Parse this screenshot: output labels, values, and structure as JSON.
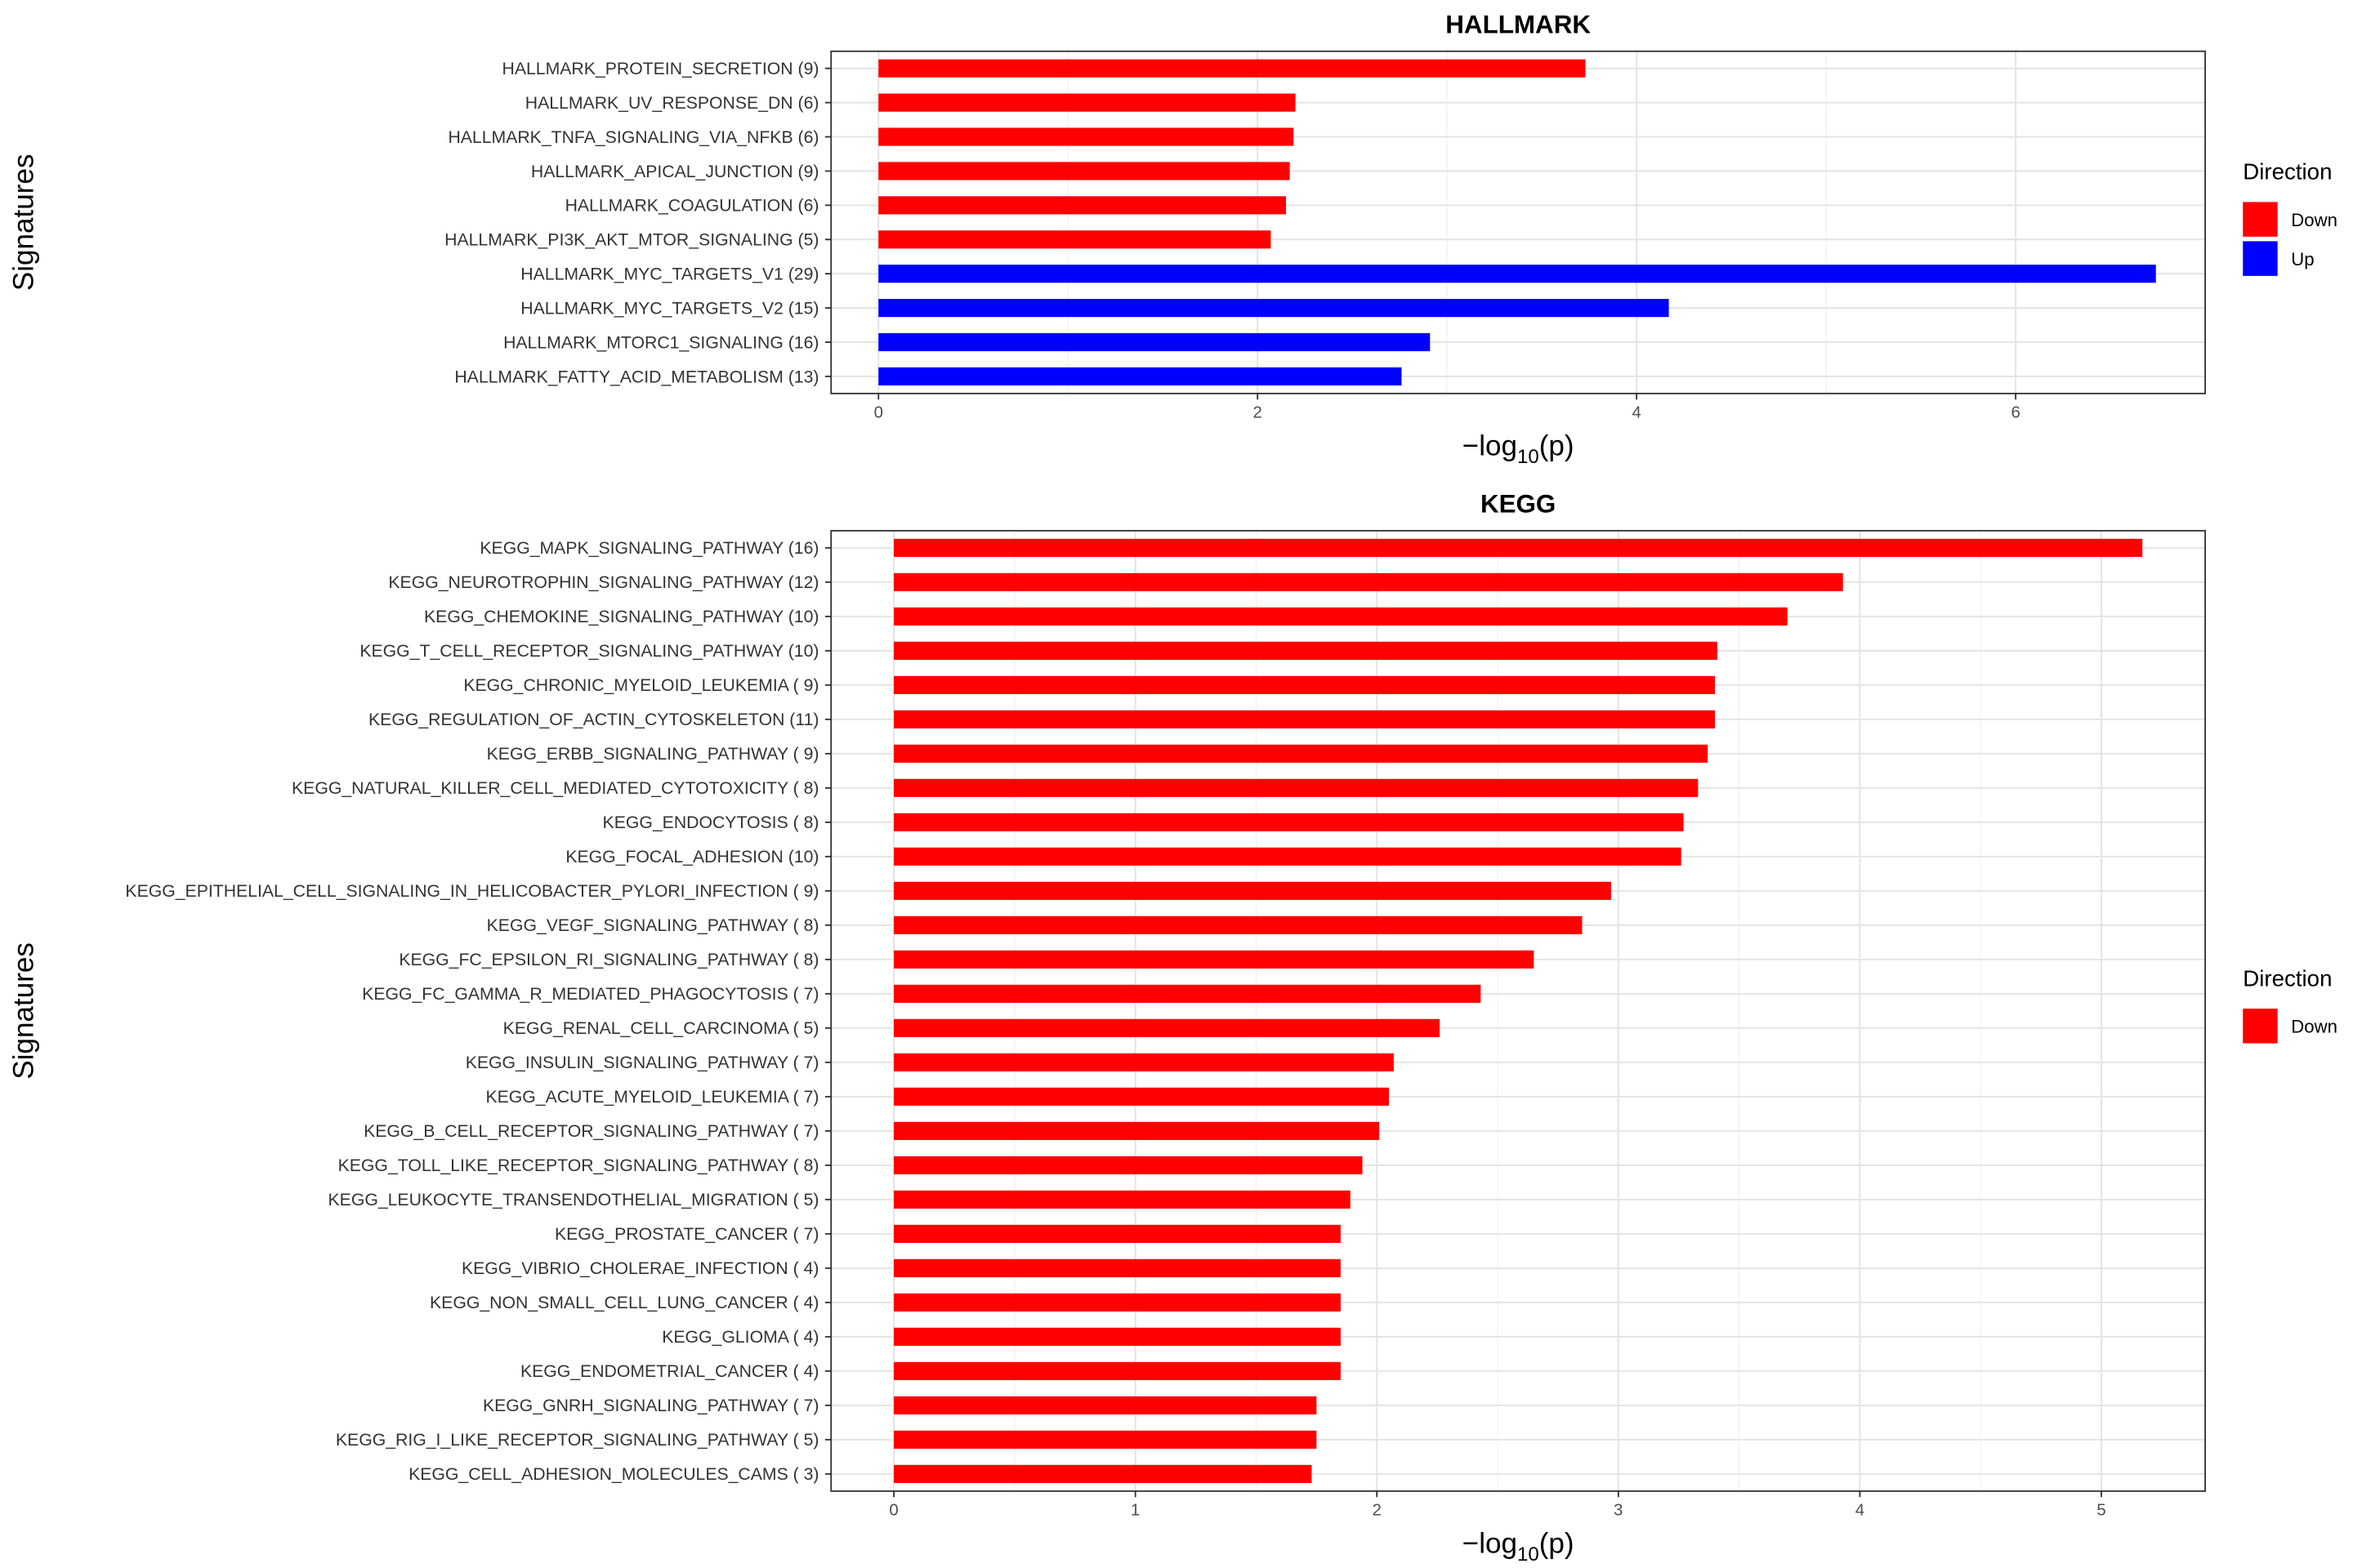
{
  "chart_data": [
    {
      "type": "bar",
      "orientation": "horizontal",
      "title": "HALLMARK",
      "xlabel": "-log10(p)",
      "ylabel": "Signatures",
      "xlim": [
        -0.25,
        7.0
      ],
      "xticks": [
        0,
        2,
        4,
        6
      ],
      "grid": true,
      "legend": {
        "title": "Direction",
        "placement": "right",
        "entries": [
          {
            "label": "Down",
            "color": "#FF0000"
          },
          {
            "label": "Up",
            "color": "#0000FF"
          }
        ]
      },
      "categories": [
        "HALLMARK_PROTEIN_SECRETION (9)",
        "HALLMARK_UV_RESPONSE_DN (6)",
        "HALLMARK_TNFA_SIGNALING_VIA_NFKB (6)",
        "HALLMARK_APICAL_JUNCTION (9)",
        "HALLMARK_COAGULATION (6)",
        "HALLMARK_PI3K_AKT_MTOR_SIGNALING (5)",
        "HALLMARK_MYC_TARGETS_V1 (29)",
        "HALLMARK_MYC_TARGETS_V2 (15)",
        "HALLMARK_MTORC1_SIGNALING (16)",
        "HALLMARK_FATTY_ACID_METABOLISM (13)"
      ],
      "values": [
        3.73,
        2.2,
        2.19,
        2.17,
        2.15,
        2.07,
        6.74,
        4.17,
        2.91,
        2.76
      ],
      "direction": [
        "Down",
        "Down",
        "Down",
        "Down",
        "Down",
        "Down",
        "Up",
        "Up",
        "Up",
        "Up"
      ]
    },
    {
      "type": "bar",
      "orientation": "horizontal",
      "title": "KEGG",
      "xlabel": "-log10(p)",
      "ylabel": "Signatures",
      "xlim": [
        -0.26,
        5.43
      ],
      "xticks": [
        0,
        1,
        2,
        3,
        4,
        5
      ],
      "grid": true,
      "legend": {
        "title": "Direction",
        "placement": "right",
        "entries": [
          {
            "label": "Down",
            "color": "#FF0000"
          }
        ]
      },
      "categories": [
        "KEGG_MAPK_SIGNALING_PATHWAY (16)",
        "KEGG_NEUROTROPHIN_SIGNALING_PATHWAY (12)",
        "KEGG_CHEMOKINE_SIGNALING_PATHWAY (10)",
        "KEGG_T_CELL_RECEPTOR_SIGNALING_PATHWAY (10)",
        "KEGG_CHRONIC_MYELOID_LEUKEMIA ( 9)",
        "KEGG_REGULATION_OF_ACTIN_CYTOSKELETON (11)",
        "KEGG_ERBB_SIGNALING_PATHWAY ( 9)",
        "KEGG_NATURAL_KILLER_CELL_MEDIATED_CYTOTOXICITY ( 8)",
        "KEGG_ENDOCYTOSIS ( 8)",
        "KEGG_FOCAL_ADHESION (10)",
        "KEGG_EPITHELIAL_CELL_SIGNALING_IN_HELICOBACTER_PYLORI_INFECTION ( 9)",
        "KEGG_VEGF_SIGNALING_PATHWAY ( 8)",
        "KEGG_FC_EPSILON_RI_SIGNALING_PATHWAY ( 8)",
        "KEGG_FC_GAMMA_R_MEDIATED_PHAGOCYTOSIS ( 7)",
        "KEGG_RENAL_CELL_CARCINOMA ( 5)",
        "KEGG_INSULIN_SIGNALING_PATHWAY ( 7)",
        "KEGG_ACUTE_MYELOID_LEUKEMIA ( 7)",
        "KEGG_B_CELL_RECEPTOR_SIGNALING_PATHWAY ( 7)",
        "KEGG_TOLL_LIKE_RECEPTOR_SIGNALING_PATHWAY ( 8)",
        "KEGG_LEUKOCYTE_TRANSENDOTHELIAL_MIGRATION ( 5)",
        "KEGG_PROSTATE_CANCER ( 7)",
        "KEGG_VIBRIO_CHOLERAE_INFECTION ( 4)",
        "KEGG_NON_SMALL_CELL_LUNG_CANCER ( 4)",
        "KEGG_GLIOMA ( 4)",
        "KEGG_ENDOMETRIAL_CANCER ( 4)",
        "KEGG_GNRH_SIGNALING_PATHWAY ( 7)",
        "KEGG_RIG_I_LIKE_RECEPTOR_SIGNALING_PATHWAY ( 5)",
        "KEGG_CELL_ADHESION_MOLECULES_CAMS ( 3)"
      ],
      "values": [
        5.17,
        3.93,
        3.7,
        3.41,
        3.4,
        3.4,
        3.37,
        3.33,
        3.27,
        3.26,
        2.97,
        2.85,
        2.65,
        2.43,
        2.26,
        2.07,
        2.05,
        2.01,
        1.94,
        1.89,
        1.85,
        1.85,
        1.85,
        1.85,
        1.85,
        1.75,
        1.75,
        1.73
      ],
      "direction": [
        "Down",
        "Down",
        "Down",
        "Down",
        "Down",
        "Down",
        "Down",
        "Down",
        "Down",
        "Down",
        "Down",
        "Down",
        "Down",
        "Down",
        "Down",
        "Down",
        "Down",
        "Down",
        "Down",
        "Down",
        "Down",
        "Down",
        "Down",
        "Down",
        "Down",
        "Down",
        "Down",
        "Down"
      ]
    }
  ]
}
